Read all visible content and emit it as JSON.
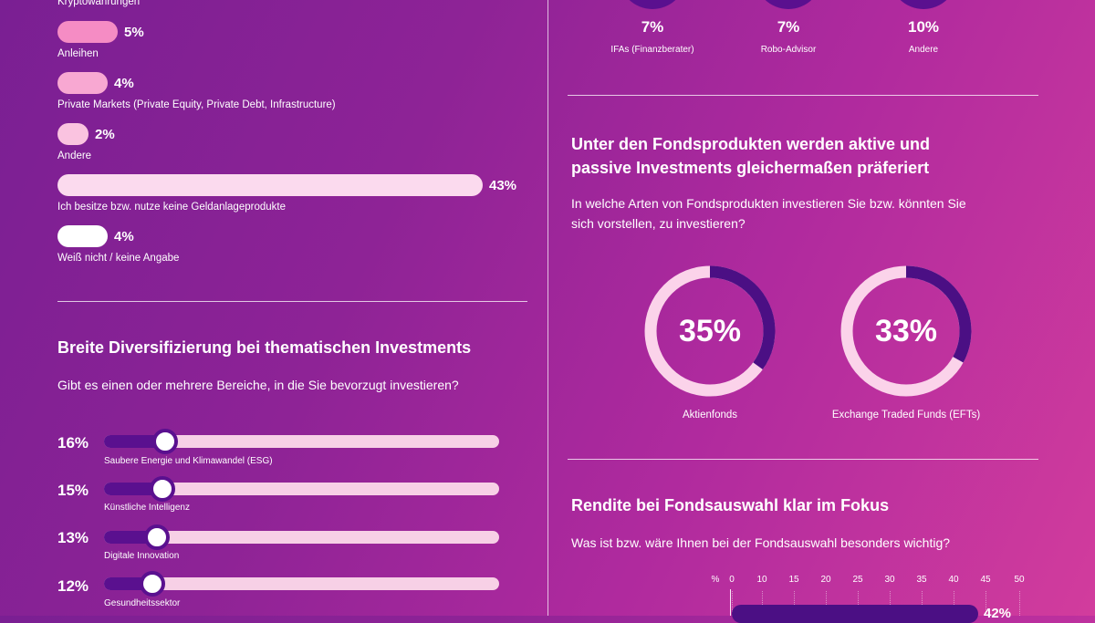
{
  "colors": {
    "dark_purple": "#5a108f",
    "pink_strong": "#f58cc4",
    "pink_light": "#f9c6e2",
    "pink_pale": "#fbdaee",
    "white": "#ffffff"
  },
  "products": {
    "items": [
      {
        "label": "Kryptowährungen",
        "pct": null,
        "value": null
      },
      {
        "label": "Anleihen",
        "pct": "5%",
        "value": 5
      },
      {
        "label": "Private Markets (Private Equity, Private Debt, Infrastructure)",
        "pct": "4%",
        "value": 4
      },
      {
        "label": "Andere",
        "pct": "2%",
        "value": 2
      },
      {
        "label": "Ich besitze bzw. nutze keine Geldanlageprodukte",
        "pct": "43%",
        "value": 43
      },
      {
        "label": "Weiß nicht / keine Angabe",
        "pct": "4%",
        "value": 4
      }
    ]
  },
  "thematic": {
    "title": "Breite Diversifizierung bei thematischen Investments",
    "question": "Gibt es einen oder mehrere Bereiche, in die Sie bevorzugt investieren?",
    "items": [
      {
        "pct": "16%",
        "value": 16,
        "label": "Saubere Energie und Klimawandel (ESG)"
      },
      {
        "pct": "15%",
        "value": 15,
        "label": "Künstliche Intelligenz"
      },
      {
        "pct": "13%",
        "value": 13,
        "label": "Digitale Innovation"
      },
      {
        "pct": "12%",
        "value": 12,
        "label": "Gesundheitssektor"
      }
    ]
  },
  "advisors": {
    "items": [
      {
        "pct": "7%",
        "label": "IFAs (Finanzberater)"
      },
      {
        "pct": "7%",
        "label": "Robo-Advisor"
      },
      {
        "pct": "10%",
        "label": "Andere"
      }
    ]
  },
  "funds": {
    "title_line1": "Unter den Fondsprodukten werden aktive und",
    "title_line2": "passive Investments gleichermaßen präferiert",
    "question_line1": "In welche Arten von Fondsprodukten investieren Sie bzw. könnten Sie",
    "question_line2": "sich vorstellen, zu investieren?",
    "donuts": [
      {
        "pct": "35%",
        "value": 35,
        "label": "Aktienfonds"
      },
      {
        "pct": "33%",
        "value": 33,
        "label": "Exchange Traded Funds (EFTs)"
      }
    ]
  },
  "rendite": {
    "title": "Rendite bei Fondsauswahl klar im Fokus",
    "question": "Was ist bzw. wäre Ihnen bei der Fondsauswahl besonders wichtig?",
    "axis_unit": "%",
    "axis_ticks": [
      "0",
      "10",
      "15",
      "20",
      "25",
      "30",
      "35",
      "40",
      "45",
      "50"
    ],
    "first_bar_label": "42%"
  },
  "chart_data": [
    {
      "type": "bar",
      "categories": [
        "Kryptowährungen",
        "Anleihen",
        "Private Markets (Private Equity, Private Debt, Infrastructure)",
        "Andere",
        "Ich besitze bzw. nutze keine Geldanlageprodukte",
        "Weiß nicht / keine Angabe"
      ],
      "values": [
        null,
        5,
        4,
        2,
        43,
        4
      ],
      "title": ""
    },
    {
      "type": "bar",
      "categories": [
        "Saubere Energie und Klimawandel (ESG)",
        "Künstliche Intelligenz",
        "Digitale Innovation",
        "Gesundheitssektor"
      ],
      "values": [
        16,
        15,
        13,
        12
      ],
      "title": "Breite Diversifizierung bei thematischen Investments"
    },
    {
      "type": "pie",
      "categories": [
        "IFAs (Finanzberater)",
        "Robo-Advisor",
        "Andere"
      ],
      "values": [
        7,
        7,
        10
      ],
      "title": ""
    },
    {
      "type": "pie",
      "categories": [
        "Aktienfonds",
        "Exchange Traded Funds (EFTs)"
      ],
      "values": [
        35,
        33
      ],
      "title": "Unter den Fondsprodukten werden aktive und passive Investments gleichermaßen präferiert"
    },
    {
      "type": "bar",
      "categories": [
        ""
      ],
      "values": [
        42
      ],
      "title": "Rendite bei Fondsauswahl klar im Fokus",
      "xlabel": "%",
      "xlim": [
        0,
        50
      ]
    }
  ]
}
